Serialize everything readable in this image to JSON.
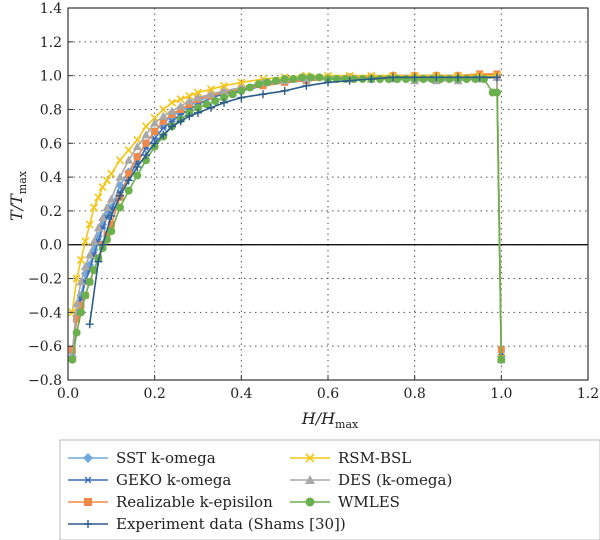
{
  "chart_data": {
    "type": "line",
    "title": "",
    "xlabel": "H/H",
    "xlabel_sub": "max",
    "ylabel": "T/T",
    "ylabel_sub": "max",
    "xlim": [
      0,
      1.2
    ],
    "ylim": [
      -0.8,
      1.4
    ],
    "xticks": [
      "0.0",
      "0.2",
      "0.4",
      "0.6",
      "0.8",
      "1.0",
      "1.2"
    ],
    "yticks": [
      "−0.8",
      "−0.6",
      "−0.4",
      "−0.2",
      "0.0",
      "0.2",
      "0.4",
      "0.6",
      "0.8",
      "1.0",
      "1.2",
      "1.4"
    ],
    "grid": "dotted",
    "zero_line": true,
    "legend_position": "bottom",
    "legend_order": [
      0,
      3,
      1,
      4,
      2,
      5,
      6
    ],
    "series": [
      {
        "name": "SST k-omega",
        "color": "#6fa8dc",
        "marker": "diamond",
        "x": [
          0.01,
          0.02,
          0.03,
          0.04,
          0.05,
          0.06,
          0.07,
          0.08,
          0.09,
          0.1,
          0.12,
          0.14,
          0.16,
          0.18,
          0.2,
          0.22,
          0.24,
          0.26,
          0.28,
          0.3,
          0.33,
          0.36,
          0.4,
          0.45,
          0.5,
          0.55,
          0.6,
          0.65,
          0.7,
          0.75,
          0.8,
          0.85,
          0.9,
          0.95,
          0.99,
          1.0
        ],
        "y": [
          -0.66,
          -0.42,
          -0.3,
          -0.17,
          -0.12,
          -0.03,
          0.05,
          0.12,
          0.18,
          0.22,
          0.35,
          0.43,
          0.52,
          0.6,
          0.67,
          0.72,
          0.76,
          0.79,
          0.82,
          0.85,
          0.88,
          0.9,
          0.92,
          0.95,
          0.97,
          0.98,
          0.99,
          0.99,
          0.99,
          1.0,
          1.0,
          1.0,
          1.0,
          1.0,
          1.0,
          -0.66
        ]
      },
      {
        "name": "GEKO k-omega",
        "color": "#3d6db5",
        "marker": "asterisk",
        "x": [
          0.01,
          0.02,
          0.03,
          0.04,
          0.05,
          0.06,
          0.07,
          0.08,
          0.09,
          0.1,
          0.12,
          0.14,
          0.16,
          0.18,
          0.2,
          0.22,
          0.24,
          0.26,
          0.28,
          0.3,
          0.33,
          0.36,
          0.4,
          0.45,
          0.5,
          0.55,
          0.6,
          0.65,
          0.7,
          0.75,
          0.8,
          0.85,
          0.9,
          0.95,
          0.99,
          1.0
        ],
        "y": [
          -0.64,
          -0.44,
          -0.32,
          -0.22,
          -0.15,
          -0.06,
          0.02,
          0.1,
          0.16,
          0.21,
          0.31,
          0.4,
          0.49,
          0.57,
          0.63,
          0.69,
          0.73,
          0.77,
          0.8,
          0.83,
          0.87,
          0.89,
          0.91,
          0.94,
          0.96,
          0.97,
          0.98,
          0.99,
          0.99,
          0.99,
          1.0,
          1.0,
          1.0,
          1.0,
          1.0,
          -0.65
        ]
      },
      {
        "name": "Realizable k-episilon",
        "color": "#f0884a",
        "marker": "square",
        "x": [
          0.01,
          0.02,
          0.03,
          0.04,
          0.05,
          0.06,
          0.07,
          0.08,
          0.09,
          0.1,
          0.12,
          0.14,
          0.16,
          0.18,
          0.2,
          0.22,
          0.24,
          0.26,
          0.28,
          0.3,
          0.33,
          0.36,
          0.4,
          0.45,
          0.5,
          0.55,
          0.6,
          0.65,
          0.7,
          0.75,
          0.8,
          0.85,
          0.9,
          0.95,
          0.99,
          1.0
        ],
        "y": [
          -0.62,
          -0.44,
          -0.36,
          -0.3,
          -0.22,
          -0.15,
          -0.08,
          0.0,
          0.06,
          0.12,
          0.28,
          0.42,
          0.52,
          0.6,
          0.67,
          0.73,
          0.77,
          0.8,
          0.83,
          0.86,
          0.88,
          0.9,
          0.92,
          0.94,
          0.96,
          0.97,
          0.98,
          0.99,
          0.99,
          1.0,
          1.0,
          1.0,
          1.0,
          1.01,
          1.01,
          -0.62
        ]
      },
      {
        "name": "RSM-BSL",
        "color": "#f5c518",
        "marker": "x",
        "x": [
          0.01,
          0.02,
          0.03,
          0.04,
          0.05,
          0.06,
          0.07,
          0.08,
          0.09,
          0.1,
          0.12,
          0.14,
          0.16,
          0.18,
          0.2,
          0.22,
          0.24,
          0.26,
          0.28,
          0.3,
          0.33,
          0.36,
          0.4,
          0.45,
          0.5,
          0.55,
          0.6,
          0.65,
          0.7,
          0.75,
          0.8,
          0.85,
          0.9,
          0.95,
          0.99,
          1.0
        ],
        "y": [
          -0.4,
          -0.2,
          -0.09,
          0.02,
          0.12,
          0.22,
          0.28,
          0.34,
          0.38,
          0.42,
          0.5,
          0.56,
          0.62,
          0.7,
          0.75,
          0.8,
          0.84,
          0.86,
          0.88,
          0.9,
          0.92,
          0.94,
          0.96,
          0.98,
          0.99,
          1.0,
          1.0,
          1.0,
          1.0,
          1.0,
          1.0,
          1.0,
          1.0,
          1.0,
          1.0,
          -0.67
        ]
      },
      {
        "name": "DES (k-omega)",
        "color": "#a8a8a8",
        "marker": "triangle",
        "x": [
          0.01,
          0.02,
          0.03,
          0.04,
          0.05,
          0.06,
          0.07,
          0.08,
          0.09,
          0.1,
          0.12,
          0.14,
          0.16,
          0.18,
          0.2,
          0.22,
          0.24,
          0.26,
          0.28,
          0.3,
          0.33,
          0.36,
          0.4,
          0.45,
          0.5,
          0.55,
          0.6,
          0.65,
          0.7,
          0.75,
          0.8,
          0.85,
          0.9,
          0.95,
          0.99,
          1.0
        ],
        "y": [
          -0.65,
          -0.35,
          -0.22,
          -0.13,
          -0.06,
          0.02,
          0.1,
          0.16,
          0.22,
          0.27,
          0.4,
          0.5,
          0.58,
          0.65,
          0.72,
          0.76,
          0.79,
          0.82,
          0.85,
          0.87,
          0.89,
          0.91,
          0.93,
          0.96,
          0.97,
          0.98,
          0.98,
          0.98,
          0.98,
          0.98,
          0.97,
          0.97,
          0.97,
          0.98,
          0.99,
          -0.68
        ]
      },
      {
        "name": "WMLES",
        "color": "#6ab04c",
        "marker": "circle",
        "x": [
          0.01,
          0.02,
          0.03,
          0.04,
          0.05,
          0.06,
          0.07,
          0.08,
          0.09,
          0.1,
          0.12,
          0.14,
          0.16,
          0.18,
          0.2,
          0.22,
          0.24,
          0.26,
          0.28,
          0.3,
          0.32,
          0.34,
          0.36,
          0.38,
          0.4,
          0.42,
          0.44,
          0.46,
          0.48,
          0.5,
          0.52,
          0.54,
          0.56,
          0.58,
          0.6,
          0.62,
          0.64,
          0.66,
          0.68,
          0.7,
          0.72,
          0.74,
          0.76,
          0.78,
          0.8,
          0.82,
          0.84,
          0.86,
          0.88,
          0.9,
          0.92,
          0.94,
          0.96,
          0.98,
          0.99,
          1.0
        ],
        "y": [
          -0.68,
          -0.52,
          -0.4,
          -0.3,
          -0.22,
          -0.15,
          -0.08,
          -0.02,
          0.03,
          0.08,
          0.22,
          0.32,
          0.41,
          0.5,
          0.58,
          0.64,
          0.7,
          0.74,
          0.78,
          0.81,
          0.83,
          0.85,
          0.87,
          0.89,
          0.91,
          0.93,
          0.95,
          0.96,
          0.97,
          0.98,
          0.98,
          0.99,
          0.99,
          0.99,
          0.98,
          0.98,
          0.98,
          0.98,
          0.98,
          0.98,
          0.98,
          0.98,
          0.98,
          0.98,
          0.98,
          0.98,
          0.98,
          0.98,
          0.98,
          0.98,
          0.98,
          0.98,
          0.98,
          0.9,
          0.9,
          -0.68
        ]
      },
      {
        "name": "Experiment data (Shams [30])",
        "color": "#2b5d8a",
        "marker": "plus",
        "x": [
          0.05,
          0.07,
          0.08,
          0.1,
          0.12,
          0.14,
          0.16,
          0.18,
          0.2,
          0.22,
          0.24,
          0.26,
          0.28,
          0.3,
          0.33,
          0.36,
          0.4,
          0.45,
          0.5,
          0.55,
          0.6,
          0.65,
          0.7,
          0.75,
          0.8,
          0.85,
          0.9,
          0.95,
          0.99
        ],
        "y": [
          -0.47,
          -0.1,
          0.0,
          0.17,
          0.29,
          0.38,
          0.46,
          0.53,
          0.6,
          0.65,
          0.7,
          0.73,
          0.76,
          0.78,
          0.81,
          0.84,
          0.87,
          0.89,
          0.91,
          0.94,
          0.96,
          0.97,
          0.98,
          0.99,
          0.99,
          0.99,
          0.99,
          0.99,
          0.99
        ]
      }
    ]
  }
}
